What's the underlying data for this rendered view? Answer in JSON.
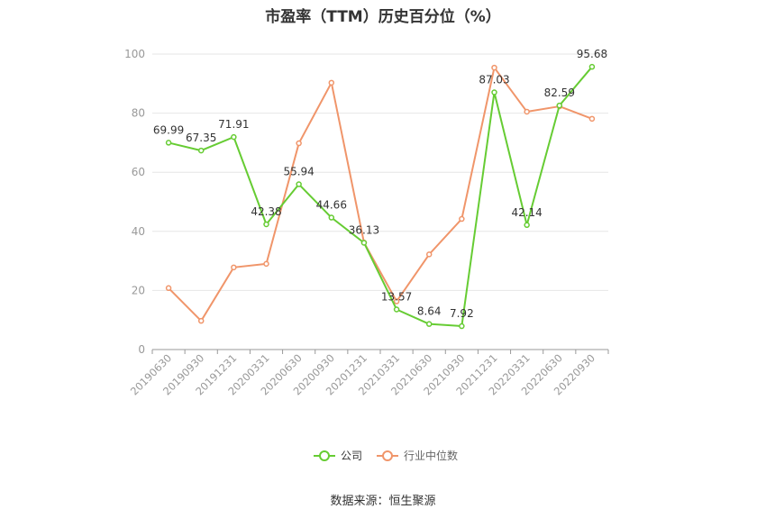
{
  "title": "市盈率（TTM）历史百分位（%）",
  "source": "数据来源：恒生聚源",
  "colors": {
    "company": "#66cc33",
    "industry": "#f0956a",
    "grid": "#e6e6e6",
    "axis": "#999999",
    "text": "#333333",
    "tick": "#999999"
  },
  "chart_data": {
    "type": "line",
    "title": "市盈率（TTM）历史百分位（%）",
    "categories": [
      "20190630",
      "20190930",
      "20191231",
      "20200331",
      "20200630",
      "20200930",
      "20201231",
      "20210331",
      "20210630",
      "20210930",
      "20211231",
      "20220331",
      "20220630",
      "20220930"
    ],
    "ylim": [
      0,
      100
    ],
    "yticks": [
      0,
      20,
      40,
      60,
      80,
      100
    ],
    "grid": true,
    "legend_position": "bottom",
    "series": [
      {
        "name": "公司",
        "color": "#66cc33",
        "labeled": true,
        "values": [
          69.99,
          67.35,
          71.91,
          42.38,
          55.94,
          44.66,
          36.13,
          13.57,
          8.64,
          7.92,
          87.03,
          42.14,
          82.59,
          95.68
        ]
      },
      {
        "name": "行业中位数",
        "color": "#f0956a",
        "labeled": false,
        "values": [
          20.8,
          9.7,
          27.8,
          29.0,
          69.8,
          90.3,
          36.2,
          16.3,
          32.2,
          44.2,
          95.4,
          80.5,
          82.3,
          78.1
        ]
      }
    ]
  }
}
